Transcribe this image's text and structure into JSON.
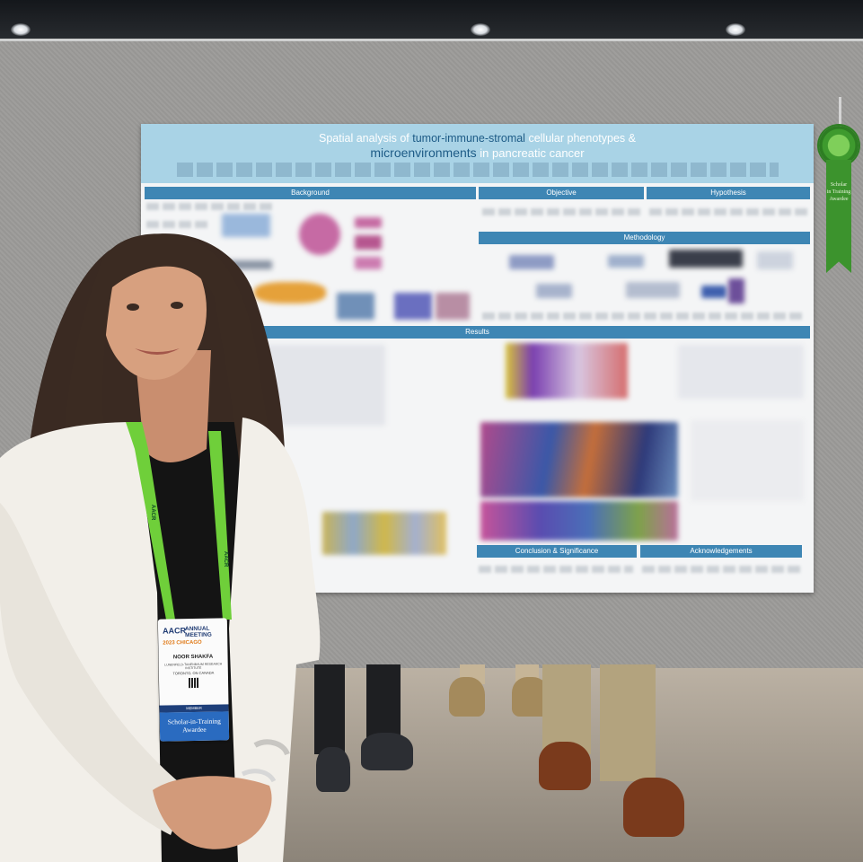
{
  "poster": {
    "title_part1": "Spatial analysis of ",
    "title_highlight1": "tumor-immune-stromal",
    "title_part2": " cellular phenotypes &",
    "title_highlight2": "microenvironments",
    "title_part3": " in pancreatic cancer",
    "sections": {
      "background": "Background",
      "objective": "Objective",
      "hypothesis": "Hypothesis",
      "methodology": "Methodology",
      "results": "Results",
      "conclusion": "Conclusion & Significance",
      "acknowledgements": "Acknowledgements"
    },
    "colors": {
      "header": "#a9d3e6",
      "section_bar": "#3e86b4",
      "title_highlight": "#1d5b86"
    }
  },
  "ribbon": {
    "line1": "Scholar",
    "line2": "in Training",
    "line3": "Awardee",
    "color": "#3c932d"
  },
  "badge": {
    "org": "AACR",
    "event": "ANNUAL MEETING",
    "year_city": "2023 CHICAGO",
    "name": "NOOR SHAKFA",
    "institution": "LUNENFELD-TANENBAUM RESEARCH INSTITUTE",
    "location": "TORONTO, ON CANADA",
    "type": "MEMBER",
    "award": "Scholar-in-Training Awardee"
  },
  "lanyard": {
    "text": "AACR",
    "color": "#6fcf3a"
  }
}
